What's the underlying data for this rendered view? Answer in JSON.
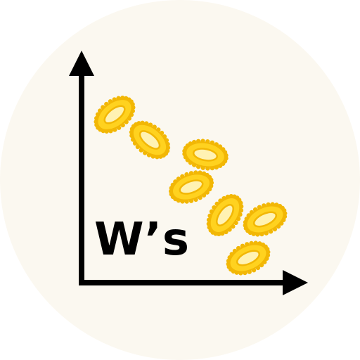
{
  "label": "W’s",
  "colors": {
    "background_circle": "#fbf8f0",
    "axes": "#000000",
    "cell_fill": "#ffd21f",
    "cell_outline": "#f2b705",
    "cell_inner": "#fff2b3",
    "label": "#000000"
  },
  "icons": {
    "axes": "xy-axes-icon",
    "cells": "oval-bacterium-icon"
  }
}
